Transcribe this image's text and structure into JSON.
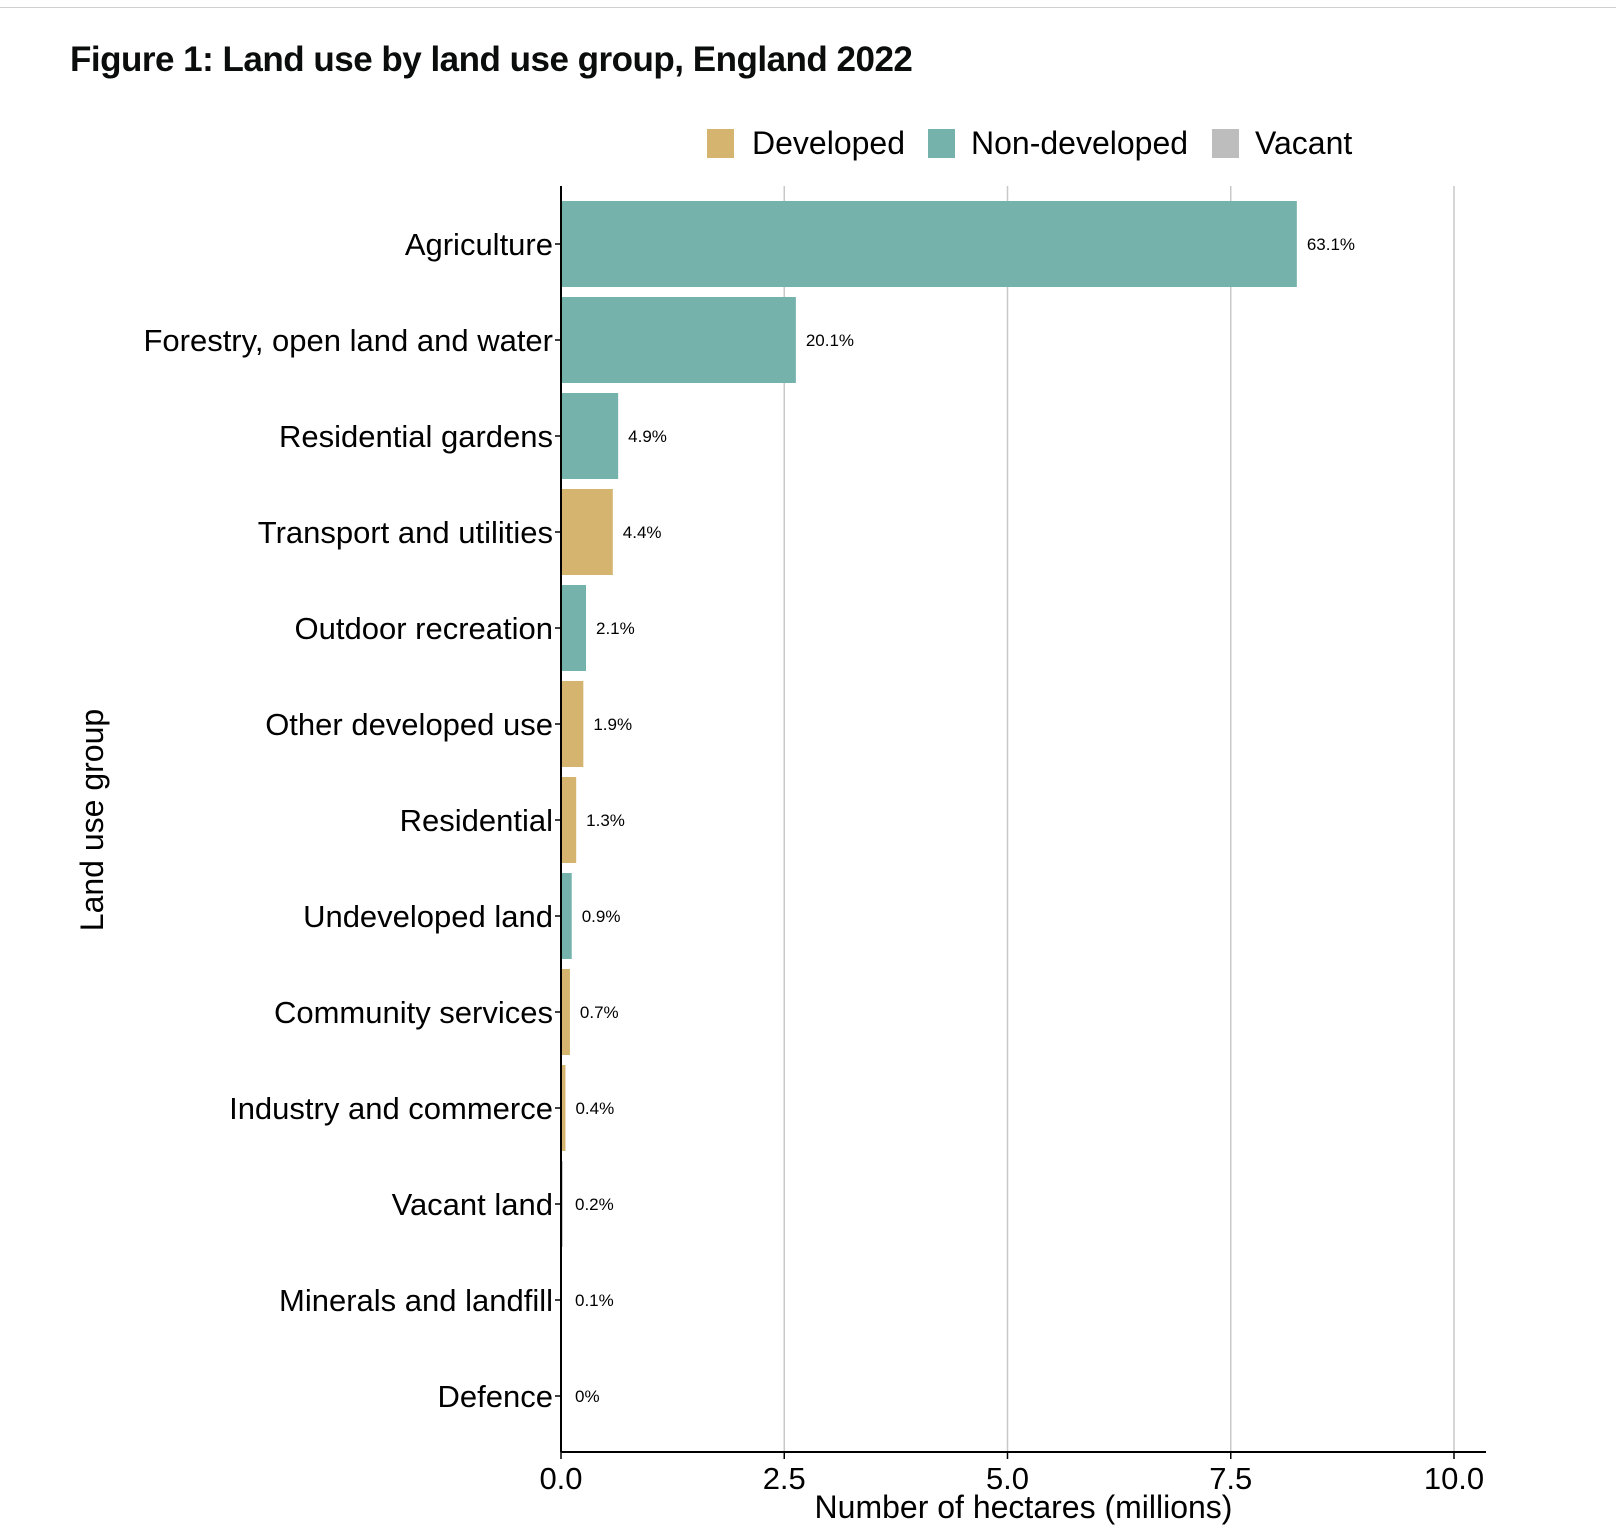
{
  "page": {
    "title": "Figure 1: Land use by land use group, England 2022"
  },
  "colors": {
    "Developed": "#d4b46f",
    "Non-developed": "#74b2ab",
    "Vacant": "#bdbdbd",
    "grid": "#c8c8c8",
    "axis": "#000000"
  },
  "chart_data": {
    "type": "bar",
    "orientation": "horizontal",
    "title": "Figure 1: Land use by land use group, England 2022",
    "xlabel": "Number of hectares (millions)",
    "ylabel": "Land use group",
    "xlim": [
      0,
      10.0
    ],
    "xticks": [
      "0.0",
      "2.5",
      "5.0",
      "7.5",
      "10.0"
    ],
    "grid": "vertical major gridlines",
    "legend": {
      "position": "top-right",
      "entries": [
        "Developed",
        "Non-developed",
        "Vacant"
      ]
    },
    "categories": [
      "Agriculture",
      "Forestry, open land and water",
      "Residential gardens",
      "Transport and utilities",
      "Outdoor recreation",
      "Other developed use",
      "Residential",
      "Undeveloped land",
      "Community services",
      "Industry and commerce",
      "Vacant land",
      "Minerals and landfill",
      "Defence"
    ],
    "values": [
      8.24,
      2.63,
      0.64,
      0.58,
      0.28,
      0.25,
      0.17,
      0.12,
      0.1,
      0.05,
      0.02,
      0.01,
      0.0
    ],
    "groups": [
      "Non-developed",
      "Non-developed",
      "Non-developed",
      "Developed",
      "Non-developed",
      "Developed",
      "Developed",
      "Non-developed",
      "Developed",
      "Developed",
      "Vacant",
      "Developed",
      "Developed"
    ],
    "labels": [
      "63.1%",
      "20.1%",
      "4.9%",
      "4.4%",
      "2.1%",
      "1.9%",
      "1.3%",
      "0.9%",
      "0.7%",
      "0.4%",
      "0.2%",
      "0.1%",
      "0%"
    ]
  }
}
